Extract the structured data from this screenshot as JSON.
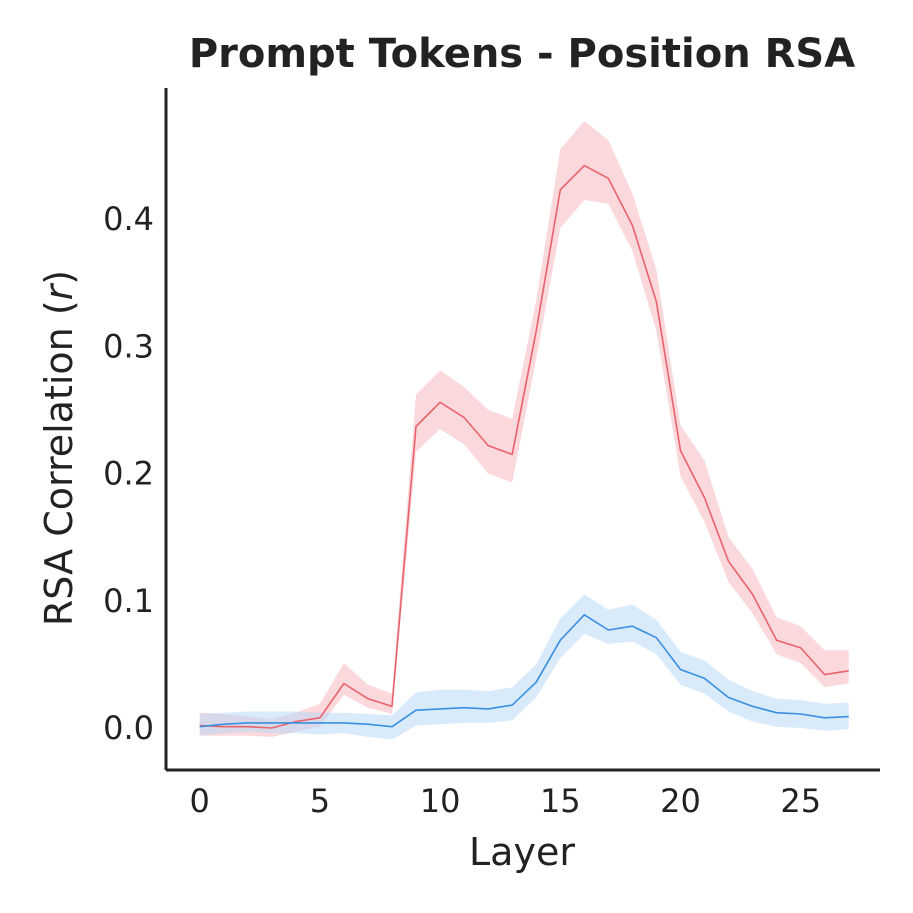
{
  "chart_data": {
    "type": "line",
    "title": "Prompt Tokens - Position RSA",
    "xlabel": "Layer",
    "ylabel_main": "RSA Correlation (",
    "ylabel_var": "r",
    "ylabel_end": ")",
    "xlim": [
      -1.4,
      28.3
    ],
    "ylim": [
      -0.033,
      0.503
    ],
    "x_ticks": [
      0,
      5,
      10,
      15,
      20,
      25
    ],
    "x_tick_labels": [
      "0",
      "5",
      "10",
      "15",
      "20",
      "25"
    ],
    "y_ticks": [
      0.0,
      0.1,
      0.2,
      0.3,
      0.4
    ],
    "y_tick_labels": [
      "0.0",
      "0.1",
      "0.2",
      "0.3",
      "0.4"
    ],
    "grid": false,
    "x": [
      0,
      1,
      2,
      3,
      4,
      5,
      6,
      7,
      8,
      9,
      10,
      11,
      12,
      13,
      14,
      15,
      16,
      17,
      18,
      19,
      20,
      21,
      22,
      23,
      24,
      25,
      26,
      27
    ],
    "series": [
      {
        "color": "#e8636c",
        "band_color": "#f6b8bd",
        "values": [
          0.002,
          0.001,
          0.001,
          0.0,
          0.005,
          0.008,
          0.035,
          0.023,
          0.017,
          0.237,
          0.256,
          0.244,
          0.222,
          0.215,
          0.312,
          0.423,
          0.442,
          0.432,
          0.395,
          0.335,
          0.218,
          0.181,
          0.131,
          0.105,
          0.069,
          0.063,
          0.042,
          0.045
        ],
        "lower": [
          -0.006,
          -0.006,
          -0.006,
          -0.007,
          -0.003,
          0.001,
          0.026,
          0.016,
          0.011,
          0.217,
          0.235,
          0.223,
          0.2,
          0.193,
          0.29,
          0.393,
          0.415,
          0.412,
          0.375,
          0.312,
          0.198,
          0.162,
          0.115,
          0.09,
          0.058,
          0.051,
          0.032,
          0.035
        ],
        "upper": [
          0.012,
          0.011,
          0.009,
          0.007,
          0.012,
          0.019,
          0.051,
          0.034,
          0.027,
          0.262,
          0.281,
          0.268,
          0.25,
          0.243,
          0.336,
          0.455,
          0.477,
          0.462,
          0.42,
          0.36,
          0.238,
          0.21,
          0.15,
          0.125,
          0.087,
          0.08,
          0.061,
          0.061
        ]
      },
      {
        "color": "#3a8fe0",
        "band_color": "#b9d8f6",
        "values": [
          0.001,
          0.003,
          0.004,
          0.004,
          0.004,
          0.004,
          0.004,
          0.003,
          0.001,
          0.014,
          0.015,
          0.016,
          0.015,
          0.018,
          0.036,
          0.069,
          0.089,
          0.077,
          0.08,
          0.071,
          0.046,
          0.039,
          0.024,
          0.017,
          0.012,
          0.011,
          0.008,
          0.009
        ],
        "lower": [
          -0.006,
          -0.004,
          -0.003,
          -0.004,
          -0.004,
          -0.005,
          -0.004,
          -0.007,
          -0.009,
          0.002,
          0.003,
          0.004,
          0.004,
          0.006,
          0.024,
          0.055,
          0.074,
          0.066,
          0.068,
          0.058,
          0.034,
          0.027,
          0.013,
          0.005,
          0.001,
          0.0,
          -0.002,
          -0.001
        ],
        "upper": [
          0.011,
          0.012,
          0.013,
          0.013,
          0.013,
          0.012,
          0.012,
          0.011,
          0.01,
          0.028,
          0.03,
          0.03,
          0.029,
          0.032,
          0.05,
          0.086,
          0.105,
          0.093,
          0.097,
          0.085,
          0.06,
          0.053,
          0.038,
          0.029,
          0.023,
          0.022,
          0.019,
          0.02
        ]
      }
    ]
  }
}
